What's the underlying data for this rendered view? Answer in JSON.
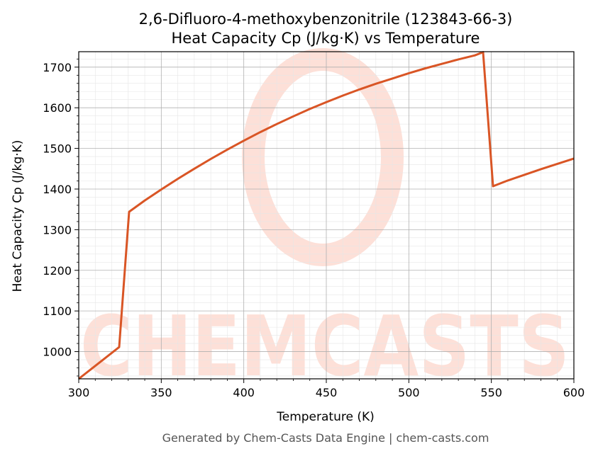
{
  "chart_data": {
    "type": "line",
    "title": "2,6-Difluoro-4-methoxybenzonitrile (123843-66-3)",
    "subtitle": "Heat Capacity Cp (J/kg·K) vs Temperature",
    "xlabel": "Temperature (K)",
    "ylabel": "Heat Capacity Cp (J/kg·K)",
    "xlim": [
      300,
      600
    ],
    "ylim": [
      933,
      1738
    ],
    "x_ticks": [
      300,
      350,
      400,
      450,
      500,
      550,
      600
    ],
    "y_ticks": [
      1000,
      1100,
      1200,
      1300,
      1400,
      1500,
      1600,
      1700
    ],
    "grid": true,
    "series": [
      {
        "color": "#d95525",
        "x": [
          300,
          324.5,
          330.5,
          340,
          350,
          360,
          370,
          380,
          390,
          400,
          410,
          420,
          430,
          440,
          450,
          460,
          470,
          480,
          490,
          500,
          510,
          520,
          530,
          540,
          545,
          551,
          560,
          570,
          580,
          590,
          600
        ],
        "y": [
          933,
          1011,
          1344,
          1372,
          1399,
          1425,
          1450,
          1474,
          1497,
          1519,
          1540,
          1560,
          1579,
          1597,
          1614,
          1630,
          1645,
          1659,
          1672,
          1685,
          1697,
          1708,
          1719,
          1729,
          1737,
          1407,
          1421,
          1435,
          1449,
          1462,
          1475
        ]
      }
    ]
  },
  "footer": "Generated by Chem-Casts Data Engine | chem-casts.com",
  "watermark": "CHEMCASTS",
  "colors": {
    "line": "#d95525",
    "watermark": "#fde0d8",
    "grid_major": "#b0b0b0",
    "grid_minor": "#e6e6e6"
  }
}
